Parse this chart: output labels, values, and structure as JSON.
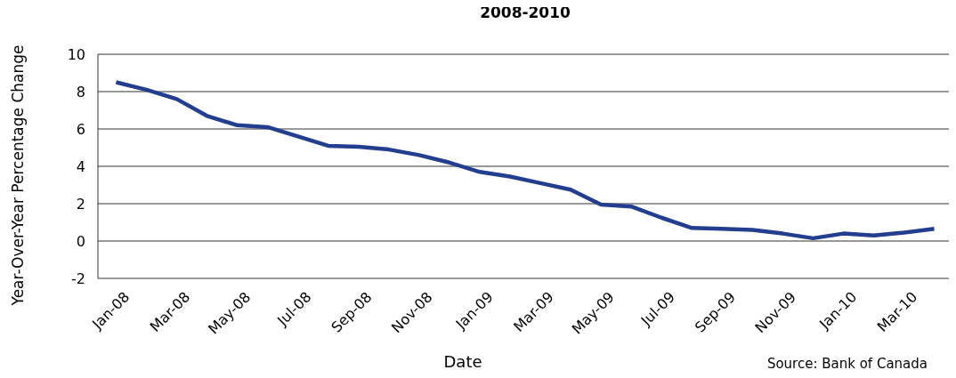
{
  "chart_data": {
    "type": "line",
    "title": "2008-2010",
    "xlabel": "Date",
    "ylabel": "Year-Over-Year Percentage Change",
    "categories": [
      "Jan-08",
      null,
      "Mar-08",
      null,
      "May-08",
      null,
      "Jul-08",
      null,
      "Sep-08",
      null,
      "Nov-08",
      null,
      "Jan-09",
      null,
      "Mar-09",
      null,
      "May-09",
      null,
      "Jul-09",
      null,
      "Sep-09",
      null,
      "Nov-09",
      null,
      "Jan-10",
      null,
      "Mar-10",
      null
    ],
    "series": [
      {
        "color": "#233d8f",
        "values": [
          8.5,
          8.1,
          7.6,
          6.7,
          6.2,
          6.1,
          5.6,
          5.1,
          5.05,
          4.9,
          4.6,
          4.2,
          3.7,
          3.45,
          3.1,
          2.75,
          1.95,
          1.85,
          1.25,
          0.7,
          0.65,
          0.6,
          0.4,
          0.15,
          0.4,
          0.3,
          0.45,
          0.65
        ]
      }
    ],
    "ylim": [
      -2,
      10
    ],
    "yticks": [
      -2,
      0,
      2,
      4,
      6,
      8,
      10
    ],
    "grid": "y",
    "marker": "none",
    "line_style": "solid",
    "annotations": [
      "Source: Bank of Canada"
    ]
  }
}
